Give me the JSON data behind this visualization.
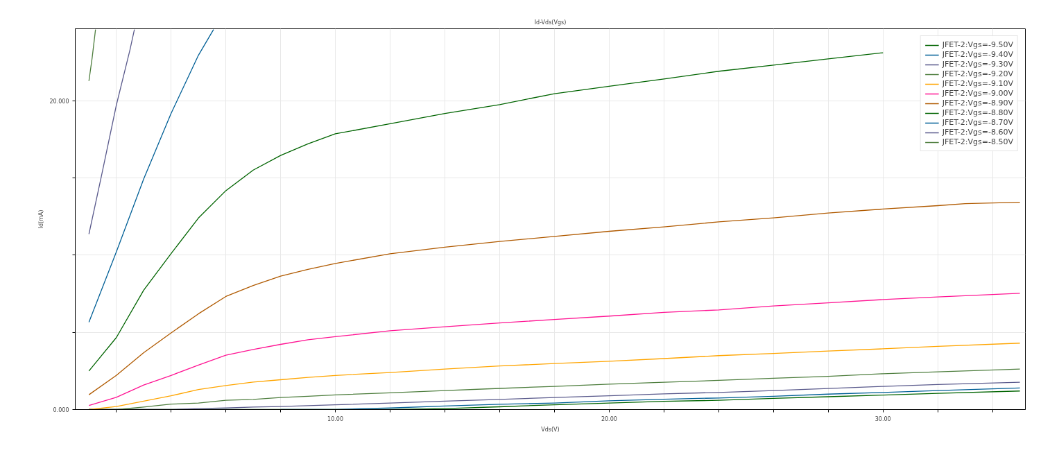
{
  "chart_data": {
    "type": "line",
    "title": "Id-Vds(Vgs)",
    "xlabel": "Vds(V)",
    "ylabel": "Id(mA)",
    "xlim": [
      0.5,
      35.2
    ],
    "ylim": [
      0,
      24.65
    ],
    "xticks": [
      {
        "value": 2,
        "label": null
      },
      {
        "value": 4,
        "label": null
      },
      {
        "value": 6,
        "label": null
      },
      {
        "value": 8,
        "label": null
      },
      {
        "value": 10,
        "label": "10.00"
      },
      {
        "value": 12,
        "label": null
      },
      {
        "value": 14,
        "label": null
      },
      {
        "value": 16,
        "label": null
      },
      {
        "value": 18,
        "label": null
      },
      {
        "value": 20,
        "label": "20.00"
      },
      {
        "value": 22,
        "label": null
      },
      {
        "value": 24,
        "label": null
      },
      {
        "value": 26,
        "label": null
      },
      {
        "value": 28,
        "label": null
      },
      {
        "value": 30,
        "label": "30.00"
      },
      {
        "value": 32,
        "label": null
      },
      {
        "value": 34,
        "label": null
      }
    ],
    "yticks": [
      {
        "value": 0,
        "label": "0.000"
      },
      {
        "value": 5,
        "label": null
      },
      {
        "value": 10,
        "label": null
      },
      {
        "value": 15,
        "label": null
      },
      {
        "value": 20,
        "label": "20.000"
      }
    ],
    "grid": true,
    "legend": "top right",
    "line_style": "solid",
    "marker": "none",
    "series": [
      {
        "name": "JFET-2:Vgs=-9.50V",
        "color": "#006400",
        "x": [
          1,
          4,
          8,
          12,
          14,
          16,
          18,
          20,
          22,
          24,
          26,
          28,
          30,
          32,
          35
        ],
        "values": [
          0,
          0,
          0,
          0.01,
          0.06,
          0.18,
          0.31,
          0.42,
          0.53,
          0.6,
          0.72,
          0.83,
          0.94,
          1.05,
          1.2
        ]
      },
      {
        "name": "JFET-2:Vgs=-9.40V",
        "color": "#005f96",
        "x": [
          8,
          10,
          12,
          14,
          16,
          18,
          20,
          22,
          24,
          26,
          28,
          30,
          32,
          35
        ],
        "values": [
          0,
          0.01,
          0.1,
          0.23,
          0.34,
          0.42,
          0.57,
          0.67,
          0.75,
          0.86,
          1.0,
          1.11,
          1.23,
          1.4
        ]
      },
      {
        "name": "JFET-2:Vgs=-9.30V",
        "color": "#5a5a8c",
        "x": [
          1,
          4,
          5,
          6,
          7,
          8,
          9,
          10,
          12,
          14,
          16,
          18,
          20,
          22,
          24,
          26,
          28,
          30,
          32,
          35
        ],
        "values": [
          0,
          0,
          0.06,
          0.1,
          0.16,
          0.2,
          0.25,
          0.31,
          0.42,
          0.54,
          0.66,
          0.78,
          0.89,
          1.02,
          1.11,
          1.23,
          1.36,
          1.5,
          1.62,
          1.77
        ]
      },
      {
        "name": "JFET-2:Vgs=-9.20V",
        "color": "#4e7e3e",
        "x": [
          1,
          2,
          3,
          4,
          5,
          6,
          7,
          8,
          9,
          10,
          12,
          14,
          16,
          18,
          20,
          22,
          24,
          26,
          28,
          30,
          32,
          35
        ],
        "values": [
          0,
          0,
          0.16,
          0.35,
          0.42,
          0.6,
          0.66,
          0.78,
          0.86,
          0.95,
          1.08,
          1.23,
          1.37,
          1.5,
          1.64,
          1.77,
          1.89,
          2.03,
          2.15,
          2.32,
          2.44,
          2.62
        ]
      },
      {
        "name": "JFET-2:Vgs=-9.10V",
        "color": "#ffa500",
        "x": [
          1,
          2,
          3,
          4,
          5,
          6,
          7,
          8,
          9,
          10,
          12,
          14,
          16,
          18,
          20,
          22,
          24,
          26,
          28,
          30,
          32,
          35
        ],
        "values": [
          0,
          0.2,
          0.54,
          0.89,
          1.3,
          1.55,
          1.78,
          1.93,
          2.08,
          2.21,
          2.4,
          2.62,
          2.82,
          2.98,
          3.13,
          3.3,
          3.49,
          3.63,
          3.79,
          3.93,
          4.09,
          4.3
        ]
      },
      {
        "name": "JFET-2:Vgs=-9.00V",
        "color": "#ff1493",
        "x": [
          1,
          2,
          3,
          4,
          5,
          6,
          7,
          8,
          9,
          10,
          12,
          14,
          16,
          18,
          20,
          22,
          24,
          26,
          28,
          30,
          32,
          35
        ],
        "values": [
          0.26,
          0.79,
          1.59,
          2.21,
          2.88,
          3.52,
          3.89,
          4.22,
          4.52,
          4.72,
          5.1,
          5.36,
          5.61,
          5.83,
          6.05,
          6.29,
          6.45,
          6.71,
          6.91,
          7.12,
          7.29,
          7.53
        ]
      },
      {
        "name": "JFET-2:Vgs=-8.90V",
        "color": "#b05a00",
        "x": [
          1,
          2,
          3,
          4,
          5,
          6,
          7,
          8,
          9,
          10,
          12,
          14,
          16,
          18,
          20,
          22,
          24,
          26,
          28,
          30,
          32,
          33,
          35
        ],
        "values": [
          0.96,
          2.21,
          3.68,
          4.96,
          6.2,
          7.32,
          8.03,
          8.64,
          9.08,
          9.46,
          10.09,
          10.51,
          10.88,
          11.21,
          11.54,
          11.83,
          12.15,
          12.41,
          12.72,
          12.98,
          13.2,
          13.33,
          13.42
        ]
      },
      {
        "name": "JFET-2:Vgs=-8.80V",
        "color": "#006400",
        "x": [
          1,
          2,
          3,
          4,
          5,
          6,
          7,
          8,
          9,
          10,
          12,
          14,
          16,
          18,
          20,
          22,
          24,
          26,
          28,
          30
        ],
        "values": [
          2.5,
          4.66,
          7.73,
          10.1,
          12.4,
          14.17,
          15.5,
          16.45,
          17.2,
          17.85,
          18.5,
          19.17,
          19.74,
          20.45,
          20.93,
          21.4,
          21.9,
          22.3,
          22.7,
          23.1
        ]
      },
      {
        "name": "JFET-2:Vgs=-8.70V",
        "color": "#005f96",
        "x": [
          1,
          2,
          3,
          4,
          5,
          5.55
        ],
        "values": [
          5.66,
          10.2,
          14.93,
          19.17,
          22.94,
          24.6
        ]
      },
      {
        "name": "JFET-2:Vgs=-8.60V",
        "color": "#5a5a8c",
        "x": [
          1,
          1.5,
          2,
          2.5,
          2.66
        ],
        "values": [
          11.36,
          15.48,
          19.7,
          23.3,
          24.6
        ]
      },
      {
        "name": "JFET-2:Vgs=-8.50V",
        "color": "#4e7e3e",
        "x": [
          1,
          1.12,
          1.24
        ],
        "values": [
          21.27,
          22.8,
          24.6
        ]
      }
    ]
  }
}
